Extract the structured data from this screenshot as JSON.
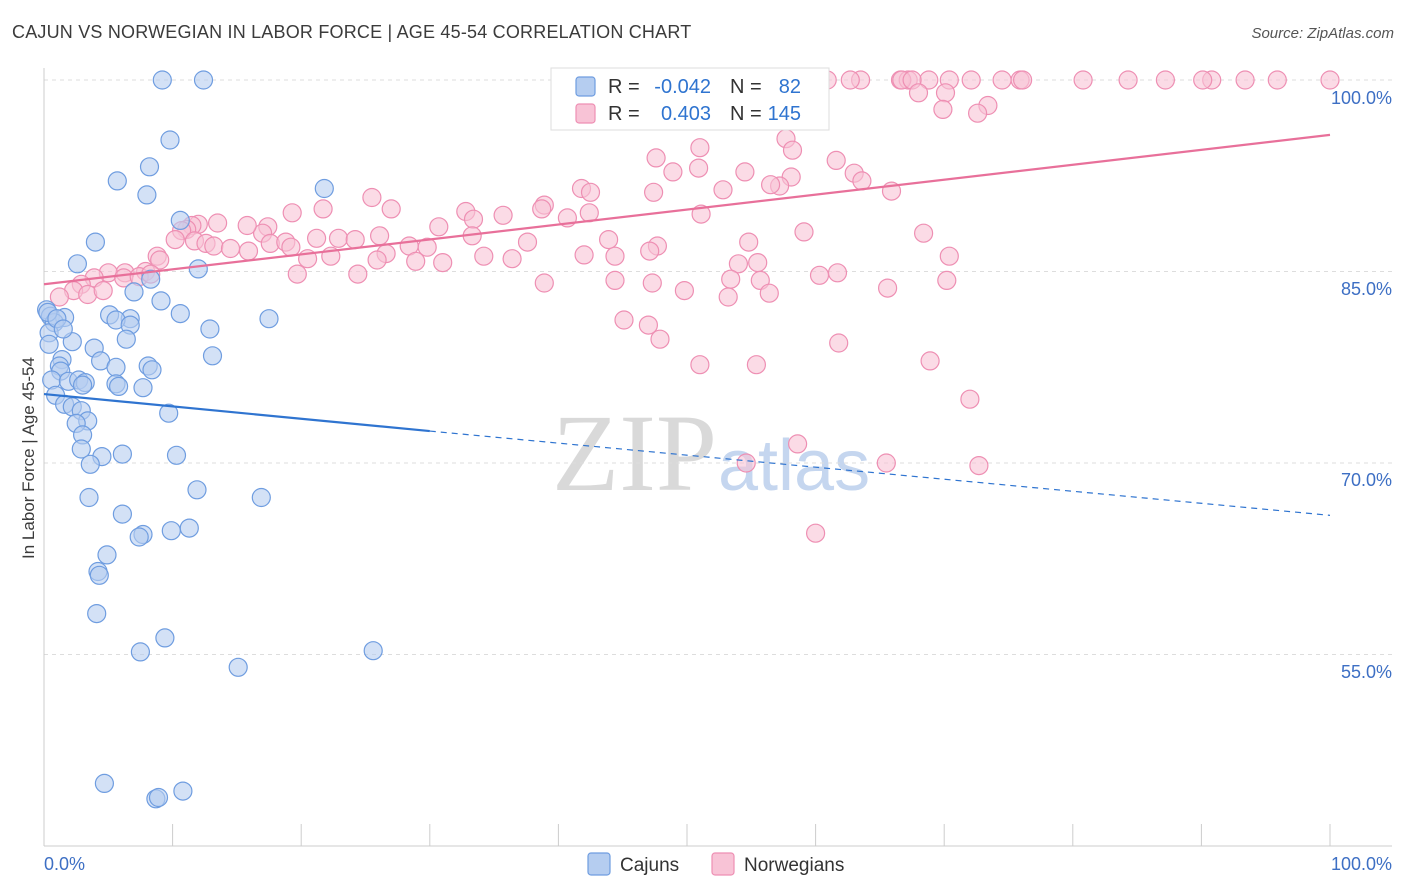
{
  "header": {
    "title": "CAJUN VS NORWEGIAN IN LABOR FORCE | AGE 45-54 CORRELATION CHART",
    "source": "Source: ZipAtlas.com"
  },
  "colors": {
    "cajun_fill": "#b5cdf0",
    "cajun_stroke": "#6f9de0",
    "cajun_line": "#2f74d0",
    "norwegian_fill": "#f8c3d6",
    "norwegian_stroke": "#ee8fb3",
    "norwegian_line": "#e8709a",
    "value_blue": "#2f74d0",
    "grid": "#dddddd"
  },
  "legend": {
    "r_label": "R =",
    "n_label": "N =",
    "cajun_r": "-0.042",
    "cajun_n": "82",
    "norwegian_r": "0.403",
    "norwegian_n": "145"
  },
  "watermark": {
    "zip": "ZIP",
    "atlas": "atlas"
  },
  "chart_data": {
    "type": "scatter",
    "title": "CAJUN VS NORWEGIAN IN LABOR FORCE | AGE 45-54 CORRELATION CHART",
    "xlabel": "",
    "ylabel": "In Labor Force | Age 45-54",
    "xlim": [
      0,
      100
    ],
    "ylim": [
      40,
      102
    ],
    "x_tick_labels": [
      "0.0%",
      "100.0%"
    ],
    "y_ticks": [
      55,
      70,
      85,
      100
    ],
    "y_tick_labels": [
      "55.0%",
      "70.0%",
      "85.0%",
      "100.0%"
    ],
    "legend_position": "top-center",
    "series": [
      {
        "name": "Cajuns",
        "r": -0.042,
        "n": 82,
        "trend": {
          "x0": 0,
          "y0": 75.4,
          "x1": 30,
          "y1": 72.5,
          "dashed_to_x": 100,
          "dashed_to_y": 65.9
        },
        "points": [
          [
            9.2,
            100
          ],
          [
            12.4,
            100
          ],
          [
            9.8,
            95.3
          ],
          [
            8.2,
            93.2
          ],
          [
            5.7,
            92.1
          ],
          [
            8.0,
            91.0
          ],
          [
            21.8,
            91.5
          ],
          [
            10.6,
            89.0
          ],
          [
            4.0,
            87.3
          ],
          [
            2.6,
            85.6
          ],
          [
            12.0,
            85.2
          ],
          [
            0.2,
            82.0
          ],
          [
            0.5,
            81.5
          ],
          [
            1.6,
            81.4
          ],
          [
            0.8,
            81.0
          ],
          [
            6.7,
            81.3
          ],
          [
            5.1,
            81.6
          ],
          [
            5.6,
            81.2
          ],
          [
            10.6,
            81.7
          ],
          [
            17.5,
            81.3
          ],
          [
            6.7,
            80.8
          ],
          [
            12.9,
            80.5
          ],
          [
            0.4,
            80.2
          ],
          [
            2.2,
            79.5
          ],
          [
            0.4,
            79.3
          ],
          [
            6.4,
            79.7
          ],
          [
            3.9,
            79.0
          ],
          [
            1.4,
            78.1
          ],
          [
            4.4,
            78.0
          ],
          [
            5.6,
            77.5
          ],
          [
            8.1,
            77.6
          ],
          [
            8.4,
            77.3
          ],
          [
            1.2,
            77.6
          ],
          [
            13.1,
            78.4
          ],
          [
            1.3,
            77.2
          ],
          [
            0.6,
            76.5
          ],
          [
            1.9,
            76.4
          ],
          [
            2.7,
            76.5
          ],
          [
            5.6,
            76.2
          ],
          [
            5.8,
            76.0
          ],
          [
            3.2,
            76.3
          ],
          [
            7.7,
            75.9
          ],
          [
            0.9,
            75.3
          ],
          [
            1.6,
            74.6
          ],
          [
            2.2,
            74.4
          ],
          [
            2.9,
            74.1
          ],
          [
            3.4,
            73.3
          ],
          [
            9.7,
            73.9
          ],
          [
            2.5,
            73.1
          ],
          [
            3.0,
            72.2
          ],
          [
            2.9,
            71.1
          ],
          [
            6.1,
            70.7
          ],
          [
            10.3,
            70.6
          ],
          [
            4.5,
            70.5
          ],
          [
            3.6,
            69.9
          ],
          [
            11.9,
            67.9
          ],
          [
            3.5,
            67.3
          ],
          [
            16.9,
            67.3
          ],
          [
            6.1,
            66.0
          ],
          [
            9.9,
            64.7
          ],
          [
            7.7,
            64.4
          ],
          [
            7.4,
            64.2
          ],
          [
            11.3,
            64.9
          ],
          [
            4.9,
            62.8
          ],
          [
            4.2,
            61.5
          ],
          [
            4.3,
            61.2
          ],
          [
            4.1,
            58.2
          ],
          [
            9.4,
            56.3
          ],
          [
            7.5,
            55.2
          ],
          [
            25.6,
            55.3
          ],
          [
            15.1,
            54.0
          ],
          [
            4.7,
            44.9
          ],
          [
            8.7,
            43.7
          ],
          [
            8.9,
            43.8
          ],
          [
            10.8,
            44.3
          ],
          [
            0.3,
            81.8
          ],
          [
            1.0,
            81.3
          ],
          [
            3.0,
            76.1
          ],
          [
            1.5,
            80.5
          ],
          [
            8.3,
            84.4
          ],
          [
            9.1,
            82.7
          ],
          [
            7.0,
            83.4
          ]
        ]
      },
      {
        "name": "Norwegians",
        "r": 0.403,
        "n": 145,
        "trend": {
          "x0": 0,
          "y0": 84.0,
          "x1": 100,
          "y1": 95.7
        },
        "points": [
          [
            60.9,
            100
          ],
          [
            66.6,
            100
          ],
          [
            67.2,
            100
          ],
          [
            68.8,
            100
          ],
          [
            70.4,
            100
          ],
          [
            74.5,
            100
          ],
          [
            75.9,
            100
          ],
          [
            80.8,
            100
          ],
          [
            84.3,
            100
          ],
          [
            90.8,
            100
          ],
          [
            93.4,
            100
          ],
          [
            95.9,
            100
          ],
          [
            100,
            100
          ],
          [
            70.1,
            99.0
          ],
          [
            66.7,
            100
          ],
          [
            72.1,
            100
          ],
          [
            76.1,
            100
          ],
          [
            87.2,
            100
          ],
          [
            90.1,
            100
          ],
          [
            67.5,
            100
          ],
          [
            63.5,
            100
          ],
          [
            56.6,
            100
          ],
          [
            62.7,
            100
          ],
          [
            68.0,
            99.0
          ],
          [
            73.4,
            98.0
          ],
          [
            72.6,
            97.4
          ],
          [
            69.9,
            97.7
          ],
          [
            53.9,
            99.5
          ],
          [
            41.5,
            98.1
          ],
          [
            57.7,
            95.4
          ],
          [
            61.6,
            93.7
          ],
          [
            58.2,
            94.5
          ],
          [
            51.0,
            94.7
          ],
          [
            47.6,
            93.9
          ],
          [
            50.9,
            93.1
          ],
          [
            48.9,
            92.8
          ],
          [
            54.5,
            92.8
          ],
          [
            63.0,
            92.7
          ],
          [
            63.6,
            92.1
          ],
          [
            65.9,
            91.3
          ],
          [
            58.1,
            92.4
          ],
          [
            57.2,
            91.7
          ],
          [
            41.8,
            91.5
          ],
          [
            42.5,
            91.2
          ],
          [
            56.5,
            91.8
          ],
          [
            52.8,
            91.4
          ],
          [
            38.9,
            90.2
          ],
          [
            35.7,
            89.4
          ],
          [
            32.8,
            89.7
          ],
          [
            30.7,
            88.5
          ],
          [
            33.4,
            89.1
          ],
          [
            38.7,
            89.9
          ],
          [
            40.7,
            89.2
          ],
          [
            47.4,
            91.2
          ],
          [
            42.4,
            89.6
          ],
          [
            51.1,
            89.5
          ],
          [
            25.5,
            90.8
          ],
          [
            27.0,
            89.9
          ],
          [
            21.7,
            89.9
          ],
          [
            19.3,
            89.6
          ],
          [
            17.4,
            88.5
          ],
          [
            17.0,
            88.0
          ],
          [
            15.8,
            88.6
          ],
          [
            13.5,
            88.8
          ],
          [
            12.0,
            88.7
          ],
          [
            11.5,
            88.6
          ],
          [
            11.1,
            88.3
          ],
          [
            10.7,
            88.2
          ],
          [
            10.2,
            87.5
          ],
          [
            11.7,
            87.4
          ],
          [
            12.6,
            87.2
          ],
          [
            13.2,
            87.0
          ],
          [
            14.5,
            86.8
          ],
          [
            15.9,
            86.6
          ],
          [
            17.6,
            87.2
          ],
          [
            18.8,
            87.3
          ],
          [
            19.2,
            86.9
          ],
          [
            21.2,
            87.6
          ],
          [
            22.9,
            87.6
          ],
          [
            24.2,
            87.5
          ],
          [
            26.1,
            87.8
          ],
          [
            28.4,
            87.0
          ],
          [
            29.8,
            86.9
          ],
          [
            33.3,
            87.8
          ],
          [
            37.6,
            87.3
          ],
          [
            43.9,
            87.5
          ],
          [
            47.7,
            87.0
          ],
          [
            26.6,
            86.4
          ],
          [
            20.5,
            86.0
          ],
          [
            22.3,
            86.2
          ],
          [
            25.9,
            85.9
          ],
          [
            28.9,
            85.8
          ],
          [
            31.0,
            85.7
          ],
          [
            34.2,
            86.2
          ],
          [
            36.4,
            86.0
          ],
          [
            42.0,
            86.3
          ],
          [
            44.4,
            86.2
          ],
          [
            47.1,
            86.6
          ],
          [
            54.0,
            85.6
          ],
          [
            55.5,
            85.7
          ],
          [
            8.8,
            86.2
          ],
          [
            9.0,
            85.9
          ],
          [
            7.9,
            85.0
          ],
          [
            6.3,
            84.9
          ],
          [
            5.0,
            84.9
          ],
          [
            3.9,
            84.5
          ],
          [
            2.9,
            84.0
          ],
          [
            2.3,
            83.5
          ],
          [
            1.2,
            83.0
          ],
          [
            3.4,
            83.2
          ],
          [
            4.6,
            83.5
          ],
          [
            6.2,
            84.5
          ],
          [
            7.4,
            84.6
          ],
          [
            8.3,
            84.8
          ],
          [
            19.7,
            84.8
          ],
          [
            24.4,
            84.8
          ],
          [
            38.9,
            84.1
          ],
          [
            44.4,
            84.3
          ],
          [
            47.3,
            84.1
          ],
          [
            53.4,
            84.4
          ],
          [
            55.7,
            84.3
          ],
          [
            49.8,
            83.5
          ],
          [
            53.2,
            83.0
          ],
          [
            56.4,
            83.3
          ],
          [
            60.3,
            84.7
          ],
          [
            61.7,
            84.9
          ],
          [
            65.6,
            83.7
          ],
          [
            70.2,
            84.3
          ],
          [
            70.4,
            86.2
          ],
          [
            54.8,
            87.3
          ],
          [
            59.1,
            88.1
          ],
          [
            68.4,
            88.0
          ],
          [
            55.4,
            77.7
          ],
          [
            61.8,
            79.4
          ],
          [
            68.9,
            78.0
          ],
          [
            72.0,
            75.0
          ],
          [
            54.6,
            70.0
          ],
          [
            58.6,
            71.5
          ],
          [
            65.5,
            70.0
          ],
          [
            72.7,
            69.8
          ],
          [
            60.0,
            64.5
          ],
          [
            45.1,
            81.2
          ],
          [
            47.0,
            80.8
          ],
          [
            47.9,
            79.7
          ],
          [
            51.0,
            77.7
          ]
        ]
      }
    ]
  }
}
